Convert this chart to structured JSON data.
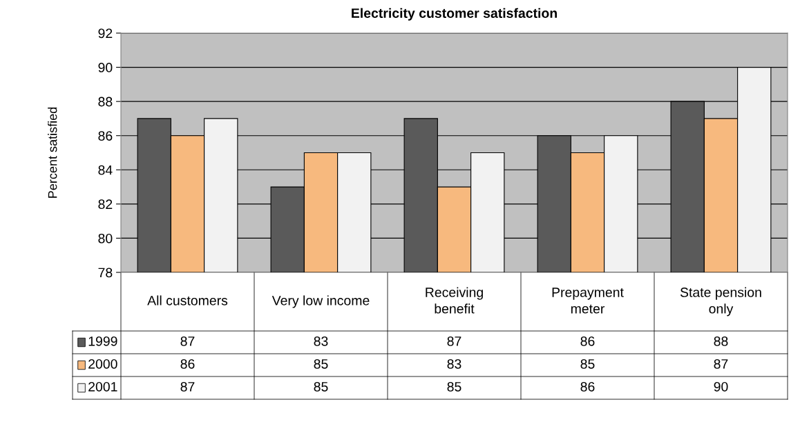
{
  "chart_data": {
    "type": "bar",
    "title": "Electricity customer satisfaction",
    "ylabel": "Percent satisfied",
    "categories": [
      "All customers",
      "Very low income",
      "Receiving\nbenefit",
      "Prepayment\nmeter",
      "State pension\nonly"
    ],
    "series": [
      {
        "name": "1999",
        "color": "#5a5a5a",
        "values": [
          87,
          83,
          87,
          86,
          88
        ]
      },
      {
        "name": "2000",
        "color": "#f7b97e",
        "values": [
          86,
          85,
          83,
          85,
          87
        ]
      },
      {
        "name": "2001",
        "color": "#f2f2f2",
        "values": [
          87,
          85,
          85,
          86,
          90
        ]
      }
    ],
    "ylim": [
      78,
      92
    ],
    "yticks": [
      78,
      80,
      82,
      84,
      86,
      88,
      90,
      92
    ],
    "grid": "y",
    "legend": "bottom",
    "data_labels": true
  }
}
